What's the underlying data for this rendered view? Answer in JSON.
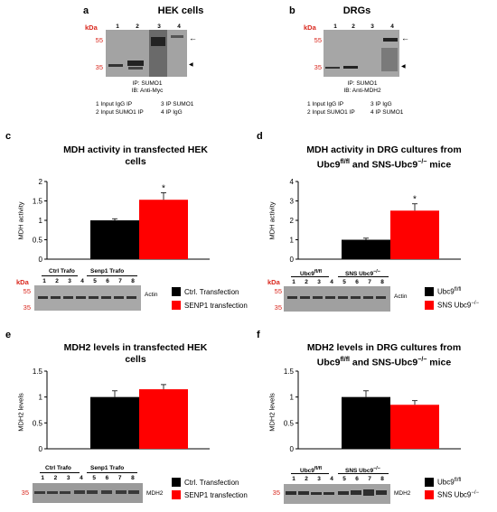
{
  "colors": {
    "ctrl": "#000000",
    "treat": "#ff0000",
    "kda": "#d9261c",
    "blot": "#9d9d9d"
  },
  "panels": {
    "a": {
      "letter": "a",
      "title": "HEK cells",
      "kda": "kDa",
      "mw": [
        "55",
        "35"
      ],
      "lanes": [
        "1",
        "2",
        "3",
        "4"
      ],
      "ip": "IP: SUMO1",
      "ib": "IB: Anti-Myc",
      "legend": [
        "1 Input IgG IP",
        "3 IP SUMO1",
        "2 Input SUMO1 IP",
        "4 IP IgG"
      ]
    },
    "b": {
      "letter": "b",
      "title": "DRGs",
      "kda": "kDa",
      "mw": [
        "55",
        "35"
      ],
      "lanes": [
        "1",
        "2",
        "3",
        "4"
      ],
      "ip": "IP: SUMO1",
      "ib": "IB: Anti-MDH2",
      "legend": [
        "1 Input IgG IP",
        "3 IP IgG",
        "2 Input SUMO1 IP",
        "4 IP SUMO1"
      ]
    },
    "c": {
      "letter": "c",
      "title_line1": "MDH activity in transfected HEK",
      "title_line2": "cells",
      "ylabel": "MDH activity",
      "star": "*",
      "blot": {
        "kda": "kDa",
        "mw": [
          "55",
          "35"
        ],
        "group1": "Ctrl Trafo",
        "group2": "Senp1 Trafo",
        "lanes": [
          "1",
          "2",
          "3",
          "4",
          "5",
          "6",
          "7",
          "8"
        ],
        "band": "Actin"
      },
      "legend": [
        "Ctrl. Transfection",
        "SENP1 transfection"
      ]
    },
    "d": {
      "letter": "d",
      "title_line1": "MDH activity in DRG cultures from",
      "title_line2_a": "Ubc9",
      "title_line2_sup": "fl/fl",
      "title_line2_b": " and SNS-Ubc9",
      "title_line2_sup2": "−/−",
      "title_line2_c": " mice",
      "ylabel": "MDH activity",
      "star": "*",
      "blot": {
        "kda": "kDa",
        "mw": [
          "55",
          "35"
        ],
        "group1": "Ubc9",
        "group1_sup": "fl/fl",
        "group2": "SNS Ubc9",
        "group2_sup": "−/−",
        "lanes": [
          "1",
          "2",
          "3",
          "4",
          "5",
          "6",
          "7",
          "8"
        ],
        "band": "Actin"
      },
      "legend": [
        "Ubc9",
        "SNS Ubc9"
      ],
      "legend_sup": [
        "fl/fl",
        "−/−"
      ]
    },
    "e": {
      "letter": "e",
      "title_line1": "MDH2 levels in transfected HEK",
      "title_line2": "cells",
      "ylabel": "MDH2 levels",
      "blot": {
        "mw": [
          "35"
        ],
        "group1": "Ctrl Trafo",
        "group2": "Senp1 Trafo",
        "lanes": [
          "1",
          "2",
          "3",
          "4",
          "5",
          "6",
          "7",
          "8"
        ],
        "band": "MDH2"
      },
      "legend": [
        "Ctrl. Transfection",
        "SENP1 transfection"
      ]
    },
    "f": {
      "letter": "f",
      "title_line1": "MDH2 levels in DRG cultures  from",
      "title_line2_a": "Ubc9",
      "title_line2_sup": "fl/fl",
      "title_line2_b": " and SNS-Ubc9",
      "title_line2_sup2": "−/−",
      "title_line2_c": " mice",
      "ylabel": "MDH2 levels",
      "blot": {
        "mw": [
          "35"
        ],
        "group1": "Ubc9",
        "group1_sup": "fl/fl",
        "group2": "SNS Ubc9",
        "group2_sup": "−/−",
        "lanes": [
          "1",
          "2",
          "3",
          "4",
          "5",
          "6",
          "7",
          "8"
        ],
        "band": "MDH2"
      },
      "legend": [
        "Ubc9",
        "SNS Ubc9"
      ],
      "legend_sup": [
        "fl/fl",
        "−/−"
      ]
    }
  },
  "chart_data": [
    {
      "type": "bar",
      "panel": "c",
      "categories": [
        "Ctrl. Transfection",
        "SENP1 transfection"
      ],
      "values": [
        1.0,
        1.53
      ],
      "errors": [
        0.04,
        0.18
      ],
      "ylim": [
        0,
        2
      ],
      "yticks": [
        "0",
        "0.5",
        "1",
        "1.5",
        "2"
      ],
      "ylabel": "MDH activity",
      "significance": [
        false,
        true
      ]
    },
    {
      "type": "bar",
      "panel": "d",
      "categories": [
        "Ubc9 fl/fl",
        "SNS Ubc9 −/−"
      ],
      "values": [
        1.0,
        2.5
      ],
      "errors": [
        0.08,
        0.35
      ],
      "ylim": [
        0,
        4
      ],
      "yticks": [
        "0",
        "1",
        "2",
        "3",
        "4"
      ],
      "ylabel": "MDH activity",
      "significance": [
        false,
        true
      ]
    },
    {
      "type": "bar",
      "panel": "e",
      "categories": [
        "Ctrl. Transfection",
        "SENP1 transfection"
      ],
      "values": [
        1.0,
        1.15
      ],
      "errors": [
        0.12,
        0.09
      ],
      "ylim": [
        0,
        1.5
      ],
      "yticks": [
        "0",
        "0.5",
        "1",
        "1.5"
      ],
      "ylabel": "MDH2 levels",
      "significance": [
        false,
        false
      ]
    },
    {
      "type": "bar",
      "panel": "f",
      "categories": [
        "Ubc9 fl/fl",
        "SNS Ubc9 −/−"
      ],
      "values": [
        1.0,
        0.85
      ],
      "errors": [
        0.12,
        0.08
      ],
      "ylim": [
        0,
        1.5
      ],
      "yticks": [
        "0",
        "0.5",
        "1",
        "1.5"
      ],
      "ylabel": "MDH2 levels",
      "significance": [
        false,
        false
      ]
    }
  ]
}
